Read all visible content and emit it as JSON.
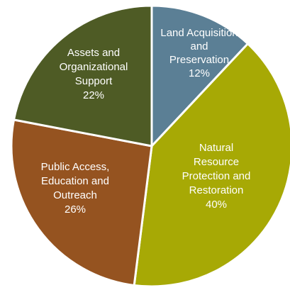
{
  "chart_data": {
    "type": "pie",
    "title": "",
    "slices": [
      {
        "label_lines": [
          "Land Acquisition",
          "and",
          "Preservation"
        ],
        "value": 12,
        "value_label": "12%",
        "color": "#5b7f95"
      },
      {
        "label_lines": [
          "Natural",
          "Resource",
          "Protection and",
          "Restoration"
        ],
        "value": 40,
        "value_label": "40%",
        "color": "#a7a905"
      },
      {
        "label_lines": [
          "Public Access,",
          "Education and",
          "Outreach"
        ],
        "value": 26,
        "value_label": "26%",
        "color": "#955320"
      },
      {
        "label_lines": [
          "Assets and",
          "Organizational",
          "Support"
        ],
        "value": 22,
        "value_label": "22%",
        "color": "#4e5b25"
      }
    ],
    "start_angle_deg": 0,
    "direction": "clockwise",
    "legend": "none"
  }
}
